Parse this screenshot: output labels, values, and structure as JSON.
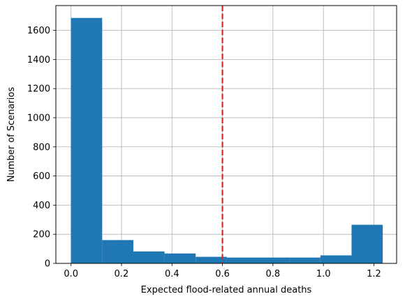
{
  "chart_data": {
    "type": "histogram",
    "title": "",
    "xlabel": "Expected flood-related annual deaths",
    "ylabel": "Number of Scenarios",
    "xlim": [
      -0.06,
      1.29
    ],
    "ylim": [
      0,
      1770
    ],
    "xticks": [
      {
        "value": 0.0,
        "label": "0.0"
      },
      {
        "value": 0.2,
        "label": "0.2"
      },
      {
        "value": 0.4,
        "label": "0.4"
      },
      {
        "value": 0.6,
        "label": "0.6"
      },
      {
        "value": 0.8,
        "label": "0.8"
      },
      {
        "value": 1.0,
        "label": "1.0"
      },
      {
        "value": 1.2,
        "label": "1.2"
      }
    ],
    "yticks": [
      {
        "value": 0,
        "label": "0"
      },
      {
        "value": 200,
        "label": "200"
      },
      {
        "value": 400,
        "label": "400"
      },
      {
        "value": 600,
        "label": "600"
      },
      {
        "value": 800,
        "label": "800"
      },
      {
        "value": 1000,
        "label": "1000"
      },
      {
        "value": 1200,
        "label": "1200"
      },
      {
        "value": 1400,
        "label": "1400"
      },
      {
        "value": 1600,
        "label": "1600"
      }
    ],
    "bins": [
      {
        "x0": 0.0,
        "x1": 0.1235,
        "count": 1685
      },
      {
        "x0": 0.1235,
        "x1": 0.247,
        "count": 160
      },
      {
        "x0": 0.247,
        "x1": 0.3705,
        "count": 82
      },
      {
        "x0": 0.3705,
        "x1": 0.494,
        "count": 68
      },
      {
        "x0": 0.494,
        "x1": 0.6175,
        "count": 45
      },
      {
        "x0": 0.6175,
        "x1": 0.741,
        "count": 40
      },
      {
        "x0": 0.741,
        "x1": 0.8645,
        "count": 40
      },
      {
        "x0": 0.8645,
        "x1": 0.988,
        "count": 40
      },
      {
        "x0": 0.988,
        "x1": 1.1115,
        "count": 55
      },
      {
        "x0": 1.1115,
        "x1": 1.235,
        "count": 265
      }
    ],
    "reference_line": {
      "x": 0.6,
      "style": "dashed"
    },
    "grid": true,
    "colors": {
      "bar": "#1f77b4",
      "reference_line": "#d62728",
      "grid": "#b0b0b0"
    }
  }
}
